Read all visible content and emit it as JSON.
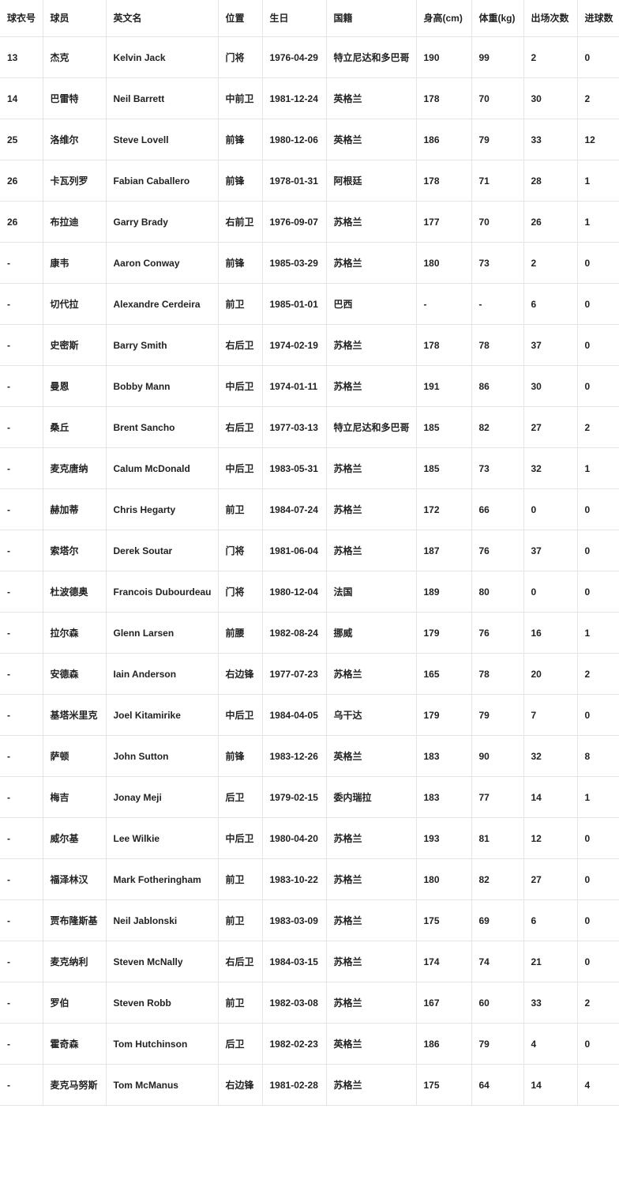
{
  "columns": [
    "球衣号",
    "球员",
    "英文名",
    "位置",
    "生日",
    "国籍",
    "身高(cm)",
    "体重(kg)",
    "出场次数",
    "进球数"
  ],
  "rows": [
    [
      "13",
      "杰克",
      "Kelvin Jack",
      "门将",
      "1976-04-29",
      "特立尼达和多巴哥",
      "190",
      "99",
      "2",
      "0"
    ],
    [
      "14",
      "巴雷特",
      "Neil Barrett",
      "中前卫",
      "1981-12-24",
      "英格兰",
      "178",
      "70",
      "30",
      "2"
    ],
    [
      "25",
      "洛维尔",
      "Steve Lovell",
      "前锋",
      "1980-12-06",
      "英格兰",
      "186",
      "79",
      "33",
      "12"
    ],
    [
      "26",
      "卡瓦列罗",
      "Fabian Caballero",
      "前锋",
      "1978-01-31",
      "阿根廷",
      "178",
      "71",
      "28",
      "1"
    ],
    [
      "26",
      "布拉迪",
      "Garry Brady",
      "右前卫",
      "1976-09-07",
      "苏格兰",
      "177",
      "70",
      "26",
      "1"
    ],
    [
      "-",
      "康韦",
      "Aaron Conway",
      "前锋",
      "1985-03-29",
      "苏格兰",
      "180",
      "73",
      "2",
      "0"
    ],
    [
      "-",
      "切代拉",
      "Alexandre Cerdeira",
      "前卫",
      "1985-01-01",
      "巴西",
      "-",
      "-",
      "6",
      "0"
    ],
    [
      "-",
      "史密斯",
      "Barry Smith",
      "右后卫",
      "1974-02-19",
      "苏格兰",
      "178",
      "78",
      "37",
      "0"
    ],
    [
      "-",
      "曼恩",
      "Bobby Mann",
      "中后卫",
      "1974-01-11",
      "苏格兰",
      "191",
      "86",
      "30",
      "0"
    ],
    [
      "-",
      "桑丘",
      "Brent Sancho",
      "右后卫",
      "1977-03-13",
      "特立尼达和多巴哥",
      "185",
      "82",
      "27",
      "2"
    ],
    [
      "-",
      "麦克唐纳",
      "Calum McDonald",
      "中后卫",
      "1983-05-31",
      "苏格兰",
      "185",
      "73",
      "32",
      "1"
    ],
    [
      "-",
      "赫加蒂",
      "Chris Hegarty",
      "前卫",
      "1984-07-24",
      "苏格兰",
      "172",
      "66",
      "0",
      "0"
    ],
    [
      "-",
      "索塔尔",
      "Derek Soutar",
      "门将",
      "1981-06-04",
      "苏格兰",
      "187",
      "76",
      "37",
      "0"
    ],
    [
      "-",
      "杜波德奥",
      "Francois Dubourdeau",
      "门将",
      "1980-12-04",
      "法国",
      "189",
      "80",
      "0",
      "0"
    ],
    [
      "-",
      "拉尔森",
      "Glenn Larsen",
      "前腰",
      "1982-08-24",
      "挪威",
      "179",
      "76",
      "16",
      "1"
    ],
    [
      "-",
      "安德森",
      "Iain Anderson",
      "右边锋",
      "1977-07-23",
      "苏格兰",
      "165",
      "78",
      "20",
      "2"
    ],
    [
      "-",
      "基塔米里克",
      "Joel Kitamirike",
      "中后卫",
      "1984-04-05",
      "乌干达",
      "179",
      "79",
      "7",
      "0"
    ],
    [
      "-",
      "萨顿",
      "John Sutton",
      "前锋",
      "1983-12-26",
      "英格兰",
      "183",
      "90",
      "32",
      "8"
    ],
    [
      "-",
      "梅吉",
      "Jonay Meji",
      "后卫",
      "1979-02-15",
      "委内瑞拉",
      "183",
      "77",
      "14",
      "1"
    ],
    [
      "-",
      "威尔基",
      "Lee Wilkie",
      "中后卫",
      "1980-04-20",
      "苏格兰",
      "193",
      "81",
      "12",
      "0"
    ],
    [
      "-",
      "福泽林汉",
      "Mark Fotheringham",
      "前卫",
      "1983-10-22",
      "苏格兰",
      "180",
      "82",
      "27",
      "0"
    ],
    [
      "-",
      "贾布隆斯基",
      "Neil Jablonski",
      "前卫",
      "1983-03-09",
      "苏格兰",
      "175",
      "69",
      "6",
      "0"
    ],
    [
      "-",
      "麦克纳利",
      "Steven McNally",
      "右后卫",
      "1984-03-15",
      "苏格兰",
      "174",
      "74",
      "21",
      "0"
    ],
    [
      "-",
      "罗伯",
      "Steven Robb",
      "前卫",
      "1982-03-08",
      "苏格兰",
      "167",
      "60",
      "33",
      "2"
    ],
    [
      "-",
      "霍奇森",
      "Tom Hutchinson",
      "后卫",
      "1982-02-23",
      "英格兰",
      "186",
      "79",
      "4",
      "0"
    ],
    [
      "-",
      "麦克马努斯",
      "Tom McManus",
      "右边锋",
      "1981-02-28",
      "苏格兰",
      "175",
      "64",
      "14",
      "4"
    ]
  ]
}
